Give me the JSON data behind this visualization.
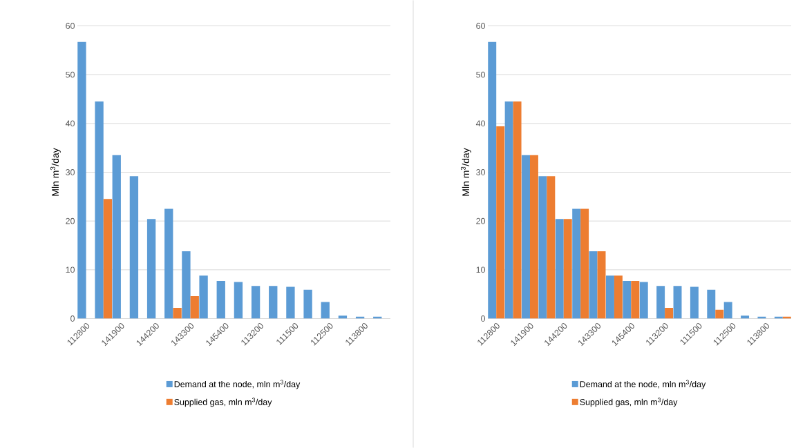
{
  "chart_data": [
    {
      "type": "bar",
      "ylabel": "Mln  m$^{3}$/day",
      "categories": [
        "112800",
        null,
        "141900",
        null,
        "144200",
        null,
        "143300",
        null,
        "145400",
        null,
        "113200",
        null,
        "111500",
        null,
        "112500",
        null,
        "113800",
        null
      ],
      "series": [
        {
          "name": "Demand at the node,  mln m$^{3}$/day",
          "color": "#5b9bd5",
          "values": [
            56.7,
            44.5,
            33.5,
            29.2,
            20.4,
            22.5,
            13.8,
            8.8,
            7.7,
            7.5,
            6.7,
            6.7,
            6.5,
            5.9,
            3.4,
            0.6,
            0.4,
            0.4
          ]
        },
        {
          "name": "Supplied gas, mln m$^{3}$/day",
          "color": "#ed7d31",
          "values": [
            null,
            24.5,
            null,
            null,
            null,
            2.2,
            4.6,
            null,
            null,
            null,
            null,
            null,
            null,
            null,
            null,
            null,
            null,
            null
          ]
        }
      ],
      "ylim": [
        0,
        60
      ],
      "yticks": [
        0,
        10,
        20,
        30,
        40,
        50,
        60
      ],
      "grid": "y",
      "legend": "bottom"
    },
    {
      "type": "bar",
      "ylabel": "Mln m$^{3}$/day",
      "categories": [
        "112800",
        null,
        "141900",
        null,
        "144200",
        null,
        "143300",
        null,
        "145400",
        null,
        "113200",
        null,
        "111500",
        null,
        "112500",
        null,
        "113800",
        null
      ],
      "series": [
        {
          "name": "Demand at the node,  mln m$^{3}$/day",
          "color": "#5b9bd5",
          "values": [
            56.7,
            44.5,
            33.5,
            29.2,
            20.4,
            22.5,
            13.8,
            8.8,
            7.7,
            7.5,
            6.7,
            6.7,
            6.5,
            5.9,
            3.4,
            0.6,
            0.4,
            0.4
          ]
        },
        {
          "name": "Supplied gas, mln m$^{3}$/day",
          "color": "#ed7d31",
          "values": [
            39.4,
            44.5,
            33.5,
            29.2,
            20.4,
            22.5,
            13.8,
            8.8,
            7.7,
            null,
            2.2,
            null,
            null,
            1.8,
            null,
            null,
            null,
            0.4
          ]
        }
      ],
      "ylim": [
        0,
        60
      ],
      "yticks": [
        0,
        10,
        20,
        30,
        40,
        50,
        60
      ],
      "grid": "y",
      "legend": "bottom"
    }
  ]
}
